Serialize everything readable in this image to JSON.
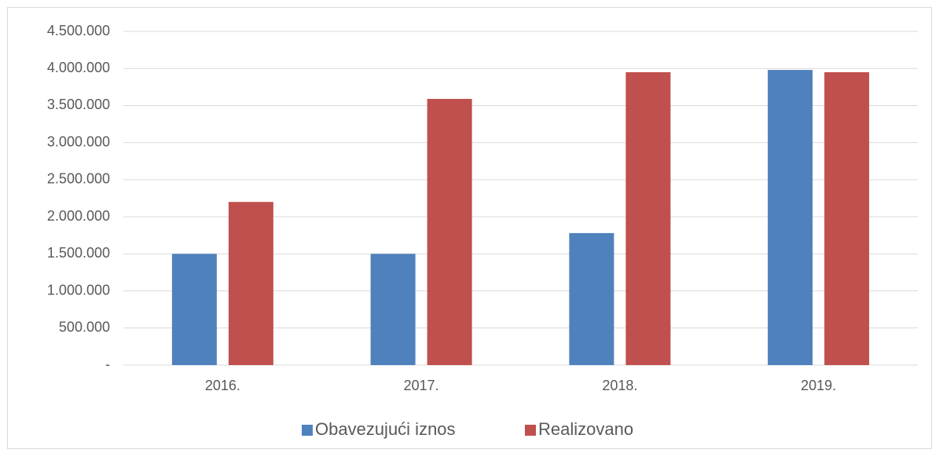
{
  "chart_data": {
    "type": "bar",
    "categories": [
      "2016.",
      "2017.",
      "2018.",
      "2019."
    ],
    "series": [
      {
        "name": "Obavezujući iznos",
        "color": "#4f81bd",
        "values": [
          1500000,
          1500000,
          1780000,
          3980000
        ]
      },
      {
        "name": "Realizovano",
        "color": "#c0504d",
        "values": [
          2200000,
          3590000,
          3950000,
          3950000
        ]
      }
    ],
    "ylim": [
      0,
      4500000
    ],
    "yticks": [
      {
        "value": 0,
        "label": "-"
      },
      {
        "value": 500000,
        "label": "500.000"
      },
      {
        "value": 1000000,
        "label": "1.000.000"
      },
      {
        "value": 1500000,
        "label": "1.500.000"
      },
      {
        "value": 2000000,
        "label": "2.000.000"
      },
      {
        "value": 2500000,
        "label": "2.500.000"
      },
      {
        "value": 3000000,
        "label": "3.000.000"
      },
      {
        "value": 3500000,
        "label": "3.500.000"
      },
      {
        "value": 4000000,
        "label": "4.000.000"
      },
      {
        "value": 4500000,
        "label": "4.500.000"
      }
    ],
    "grid": true,
    "legend": "bottom"
  }
}
